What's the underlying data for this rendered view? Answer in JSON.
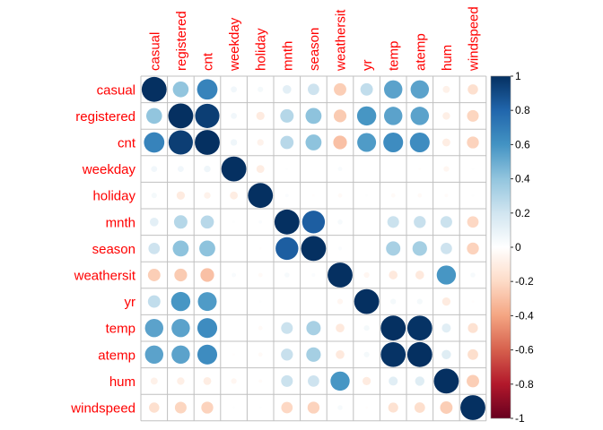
{
  "chart_data": {
    "type": "heatmap",
    "variables": [
      "casual",
      "registered",
      "cnt",
      "weekday",
      "holiday",
      "mnth",
      "season",
      "weathersit",
      "yr",
      "temp",
      "atemp",
      "hum",
      "windspeed"
    ],
    "matrix": [
      [
        1.0,
        0.4,
        0.67,
        0.06,
        0.05,
        0.12,
        0.21,
        -0.25,
        0.25,
        0.54,
        0.54,
        -0.08,
        -0.17
      ],
      [
        0.4,
        1.0,
        0.95,
        0.06,
        -0.11,
        0.29,
        0.41,
        -0.26,
        0.59,
        0.54,
        0.54,
        -0.09,
        -0.22
      ],
      [
        0.67,
        0.95,
        1.0,
        0.07,
        -0.07,
        0.28,
        0.41,
        -0.3,
        0.57,
        0.63,
        0.63,
        -0.1,
        -0.23
      ],
      [
        0.06,
        0.06,
        0.07,
        1.0,
        -0.1,
        0.01,
        0.0,
        0.03,
        0.0,
        0.0,
        -0.01,
        -0.05,
        0.01
      ],
      [
        0.05,
        -0.11,
        -0.07,
        -0.1,
        1.0,
        0.02,
        -0.01,
        -0.03,
        0.01,
        -0.03,
        -0.03,
        -0.02,
        0.01
      ],
      [
        0.12,
        0.29,
        0.28,
        0.01,
        0.02,
        1.0,
        0.83,
        0.04,
        0.0,
        0.22,
        0.23,
        0.22,
        -0.21
      ],
      [
        0.21,
        0.41,
        0.41,
        0.0,
        -0.01,
        0.83,
        1.0,
        0.02,
        0.0,
        0.33,
        0.34,
        0.21,
        -0.23
      ],
      [
        -0.25,
        -0.26,
        -0.3,
        0.03,
        -0.03,
        0.04,
        0.02,
        1.0,
        -0.05,
        -0.12,
        -0.12,
        0.59,
        0.04
      ],
      [
        0.25,
        0.59,
        0.57,
        0.0,
        0.01,
        0.0,
        0.0,
        -0.05,
        1.0,
        0.05,
        0.05,
        -0.11,
        -0.01
      ],
      [
        0.54,
        0.54,
        0.63,
        0.0,
        -0.03,
        0.22,
        0.33,
        -0.12,
        0.05,
        1.0,
        0.99,
        0.13,
        -0.16
      ],
      [
        0.54,
        0.54,
        0.63,
        -0.01,
        -0.03,
        0.23,
        0.34,
        -0.12,
        0.05,
        0.99,
        1.0,
        0.14,
        -0.18
      ],
      [
        -0.08,
        -0.09,
        -0.1,
        -0.05,
        -0.02,
        0.22,
        0.21,
        0.59,
        -0.11,
        0.13,
        0.14,
        1.0,
        -0.25
      ],
      [
        -0.17,
        -0.22,
        -0.23,
        0.01,
        0.01,
        -0.21,
        -0.23,
        0.04,
        -0.01,
        -0.16,
        -0.18,
        -0.25,
        1.0
      ]
    ],
    "colorbar": {
      "ticks": [
        "1",
        "0.8",
        "0.6",
        "0.4",
        "0.2",
        "0",
        "-0.2",
        "-0.4",
        "-0.6",
        "-0.8",
        "-1"
      ],
      "range": [
        -1,
        1
      ]
    },
    "colors": {
      "label": "#ff0000",
      "grid": "#c0c0c0",
      "scale": [
        "#67001f",
        "#b2182b",
        "#d6604d",
        "#f4a582",
        "#fddbc7",
        "#ffffff",
        "#d1e5f0",
        "#92c5de",
        "#4393c3",
        "#2166ac",
        "#053061"
      ]
    }
  }
}
